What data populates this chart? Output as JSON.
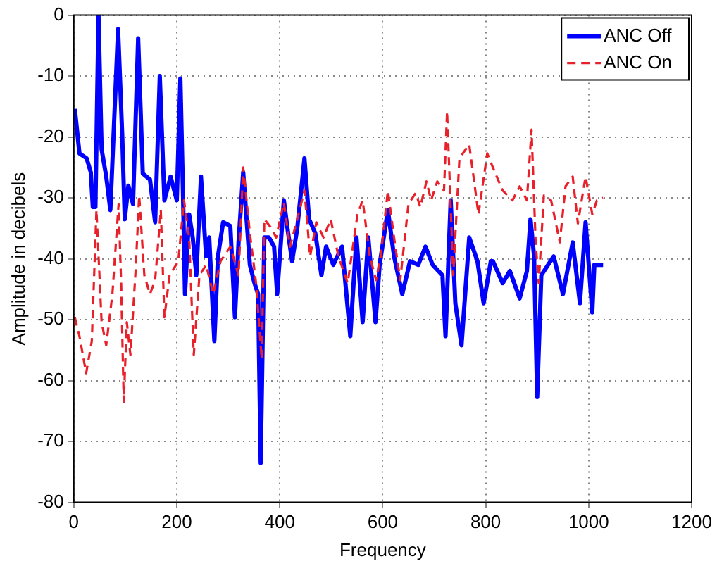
{
  "chart_data": {
    "type": "line",
    "xlabel": "Frequency",
    "ylabel": "Amplitude in decibels",
    "xlim": [
      0,
      1200
    ],
    "xticks": [
      0,
      200,
      400,
      600,
      800,
      1000,
      1200
    ],
    "ylim": [
      -80,
      0
    ],
    "yticks": [
      -80,
      -70,
      -60,
      -50,
      -40,
      -30,
      -20,
      -10,
      0
    ],
    "grid": true,
    "legend": "top right",
    "marker": "none",
    "series": [
      {
        "name": "ANC Off",
        "color": "#0000ff",
        "line_style": "solid",
        "x": [
          2,
          11,
          25,
          33,
          37,
          42,
          48,
          54,
          63,
          71,
          86,
          94,
          99,
          106,
          115,
          125,
          134,
          148,
          158,
          167,
          176,
          188,
          200,
          207,
          212,
          216,
          224,
          231,
          238,
          247,
          257,
          263,
          273,
          280,
          290,
          304,
          313,
          320,
          329,
          342,
          351,
          358,
          363,
          370,
          379,
          389,
          395,
          408,
          415,
          424,
          434,
          448,
          457,
          469,
          481,
          490,
          504,
          521,
          537,
          549,
          561,
          572,
          586,
          594,
          610,
          622,
          638,
          653,
          669,
          683,
          697,
          716,
          722,
          732,
          741,
          753,
          768,
          784,
          796,
          810,
          814,
          833,
          847,
          866,
          880,
          887,
          894,
          900,
          908,
          932,
          950,
          969,
          983,
          994,
          1007,
          1011,
          1028
        ],
        "values": [
          -15.4,
          -22.7,
          -23.5,
          -25.8,
          -31.5,
          -31.5,
          0,
          -22,
          -26.5,
          -32,
          -2.3,
          -19.6,
          -33.5,
          -28,
          -31,
          -3.8,
          -26,
          -27,
          -34,
          -10,
          -30.4,
          -26.5,
          -30.4,
          -10.4,
          -29,
          -45.8,
          -32.7,
          -36.5,
          -42.7,
          -26.5,
          -39.6,
          -36.5,
          -53.5,
          -39.6,
          -34,
          -34.6,
          -49.6,
          -37.3,
          -25.8,
          -41,
          -44,
          -45.8,
          -73.5,
          -36.5,
          -36.5,
          -38,
          -45.8,
          -30.4,
          -35,
          -40.4,
          -35,
          -23.5,
          -33.5,
          -35.8,
          -42.7,
          -38,
          -41,
          -38,
          -52.7,
          -36.5,
          -50.4,
          -36.5,
          -50.4,
          -41,
          -32,
          -39.6,
          -45.8,
          -40.4,
          -41,
          -38,
          -41,
          -42.7,
          -52.7,
          -30.4,
          -47.3,
          -54.2,
          -36.5,
          -40.4,
          -47.3,
          -40.4,
          -40.4,
          -44,
          -42,
          -46.5,
          -42,
          -33.5,
          -39.6,
          -62.7,
          -42.7,
          -39.6,
          -45.8,
          -37.3,
          -47.3,
          -34,
          -48.8,
          -41,
          -41
        ]
      },
      {
        "name": "ANC On",
        "color": "#e8202a",
        "line_style": "dashed",
        "x": [
          2,
          11,
          24,
          35,
          44,
          54,
          63,
          75,
          87,
          92,
          97,
          103,
          110,
          120,
          127,
          137,
          148,
          158,
          169,
          176,
          186,
          203,
          214,
          224,
          233,
          244,
          257,
          271,
          285,
          304,
          320,
          329,
          342,
          354,
          365,
          370,
          384,
          393,
          408,
          420,
          434,
          448,
          459,
          471,
          485,
          499,
          514,
          532,
          551,
          561,
          575,
          587,
          596,
          610,
          622,
          634,
          650,
          664,
          673,
          685,
          694,
          706,
          719,
          725,
          737,
          749,
          768,
          786,
          803,
          814,
          833,
          852,
          866,
          880,
          889,
          897,
          903,
          913,
          927,
          944,
          955,
          969,
          979,
          994,
          1007,
          1016,
          1028
        ],
        "values": [
          -49.6,
          -52.7,
          -58.8,
          -53.5,
          -32,
          -50.4,
          -54.2,
          -45.8,
          -31,
          -44,
          -63.5,
          -50.4,
          -55.8,
          -42,
          -29.6,
          -42.7,
          -45.8,
          -43.5,
          -32,
          -49.6,
          -42.7,
          -40.4,
          -30.4,
          -36.5,
          -55.8,
          -42.7,
          -41,
          -45.8,
          -40.4,
          -38,
          -42.7,
          -25,
          -35.8,
          -44,
          -56.5,
          -33.5,
          -35,
          -36.5,
          -30.8,
          -38,
          -33.5,
          -28.8,
          -39.6,
          -34,
          -36.5,
          -33.5,
          -39.6,
          -44,
          -32.7,
          -30.4,
          -39.6,
          -43.5,
          -39.6,
          -28.8,
          -36.5,
          -43.5,
          -31,
          -29.2,
          -31.5,
          -27.3,
          -30.4,
          -27.3,
          -28.8,
          -15.8,
          -42.7,
          -23.5,
          -21.2,
          -32.7,
          -22.7,
          -25,
          -28.8,
          -30.4,
          -28.1,
          -30.4,
          -18.8,
          -37.3,
          -44,
          -29.6,
          -30.4,
          -37.3,
          -28.1,
          -26.5,
          -34.2,
          -26.5,
          -32.7,
          -30.4,
          -30
        ]
      }
    ]
  }
}
